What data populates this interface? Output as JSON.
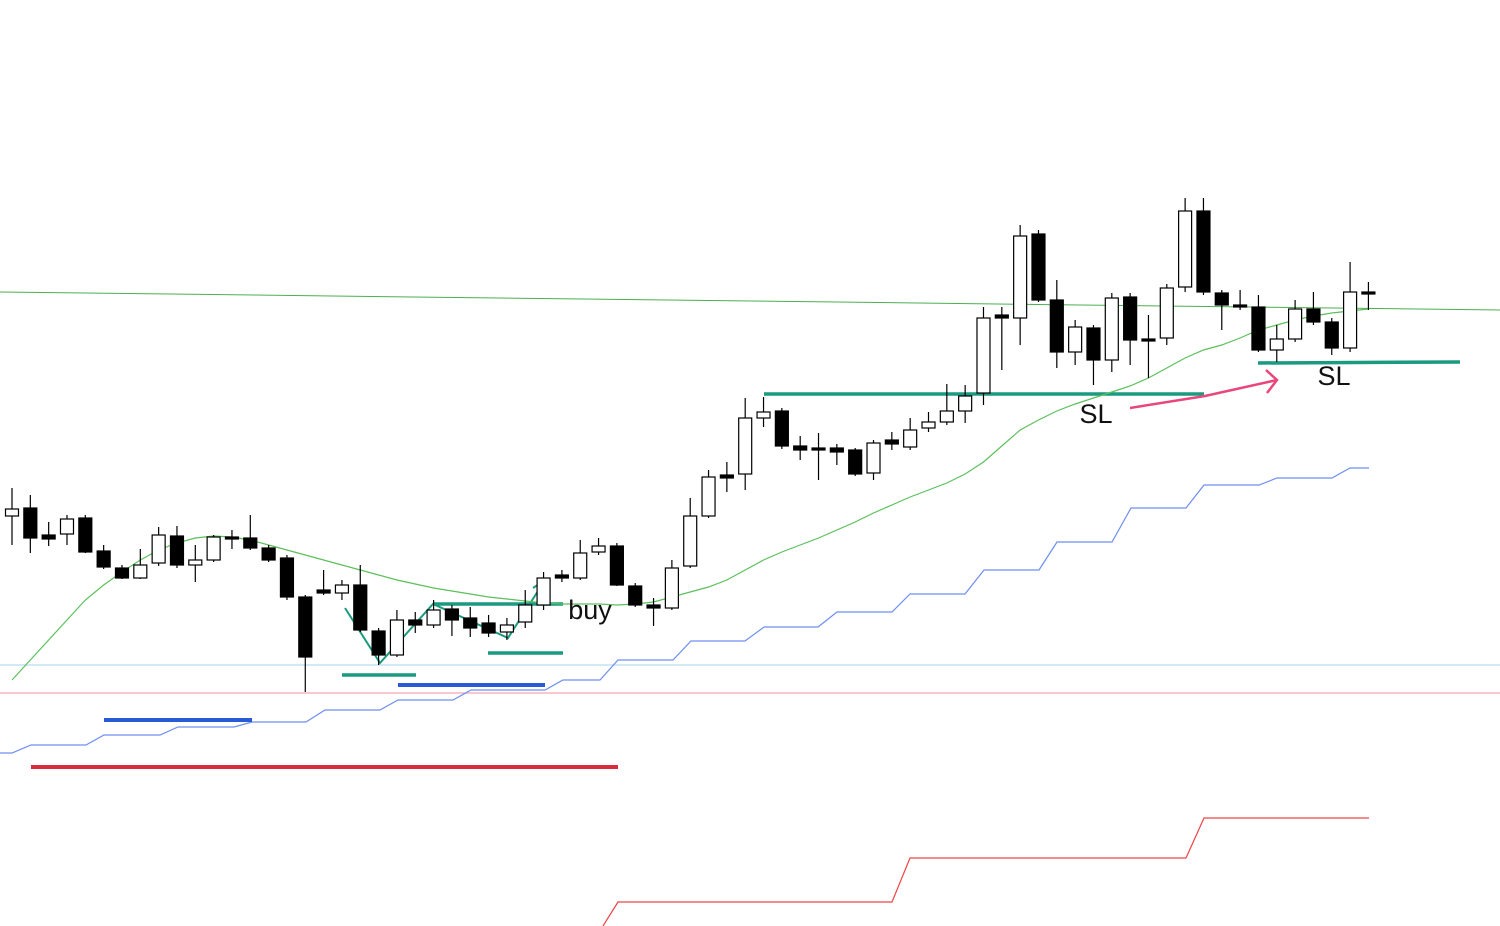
{
  "chart_data": {
    "type": "candlestick",
    "ylim": [
      0,
      926
    ],
    "up_color": "#ffffff",
    "down_color": "#000000",
    "edge_color": "#000000",
    "open": [
      410,
      418,
      391,
      392,
      408,
      375,
      358,
      348,
      363,
      390,
      361,
      366,
      389,
      388,
      378,
      368,
      329,
      336,
      333,
      341,
      295,
      271,
      306,
      301,
      317,
      308,
      303,
      294,
      304,
      321,
      351,
      348,
      374,
      380,
      340,
      321,
      318,
      360,
      410,
      451,
      452,
      508,
      515,
      480,
      478,
      478,
      476,
      453,
      486,
      479,
      498,
      504,
      515,
      533,
      611,
      608,
      692,
      626,
      574,
      598,
      566,
      629,
      587,
      588,
      639,
      715,
      633,
      621,
      619,
      576,
      587,
      617,
      604,
      578,
      634
    ],
    "high": [
      438,
      431,
      404,
      411,
      411,
      381,
      361,
      377,
      399,
      400,
      381,
      391,
      396,
      411,
      381,
      371,
      331,
      356,
      346,
      361,
      298,
      316,
      314,
      326,
      321,
      319,
      311,
      308,
      336,
      354,
      356,
      386,
      388,
      383,
      343,
      328,
      366,
      428,
      456,
      464,
      528,
      529,
      518,
      490,
      493,
      482,
      478,
      486,
      494,
      508,
      514,
      542,
      541,
      619,
      619,
      701,
      696,
      646,
      606,
      601,
      633,
      633,
      611,
      642,
      728,
      728,
      636,
      636,
      631,
      601,
      626,
      634,
      608,
      664,
      644
    ],
    "low": [
      381,
      373,
      380,
      381,
      373,
      357,
      347,
      347,
      360,
      358,
      344,
      364,
      377,
      376,
      364,
      326,
      234,
      331,
      326,
      294,
      261,
      269,
      293,
      298,
      290,
      289,
      289,
      286,
      298,
      316,
      344,
      346,
      371,
      340,
      319,
      300,
      316,
      358,
      408,
      434,
      436,
      499,
      477,
      466,
      446,
      461,
      450,
      446,
      476,
      476,
      494,
      501,
      503,
      521,
      556,
      581,
      624,
      558,
      561,
      541,
      554,
      561,
      548,
      581,
      634,
      631,
      596,
      616,
      574,
      564,
      584,
      601,
      571,
      574,
      616
    ],
    "close": [
      417,
      388,
      387,
      407,
      374,
      359,
      348,
      361,
      391,
      361,
      366,
      389,
      387,
      378,
      366,
      329,
      269,
      333,
      341,
      296,
      271,
      306,
      301,
      316,
      306,
      298,
      293,
      301,
      321,
      348,
      348,
      373,
      380,
      341,
      321,
      318,
      358,
      410,
      449,
      448,
      508,
      514,
      480,
      476,
      476,
      474,
      452,
      483,
      482,
      496,
      504,
      515,
      530,
      608,
      608,
      690,
      626,
      574,
      599,
      566,
      628,
      586,
      585,
      638,
      715,
      634,
      621,
      619,
      576,
      587,
      617,
      604,
      578,
      634,
      632
    ],
    "ma": {
      "color": "#5cbf5c",
      "values": [
        246,
        266,
        286,
        306,
        326,
        341,
        354,
        366,
        376,
        383,
        388,
        390,
        389,
        386,
        381,
        376,
        371,
        366,
        361,
        356,
        351,
        346,
        342,
        338,
        335,
        332,
        329,
        327,
        325,
        323,
        322,
        322,
        322,
        321,
        322,
        324,
        329,
        334,
        339,
        346,
        356,
        366,
        374,
        381,
        388,
        396,
        404,
        413,
        421,
        429,
        436,
        443,
        452,
        464,
        480,
        496,
        506,
        515,
        522,
        528,
        534,
        540,
        548,
        558,
        568,
        576,
        581,
        588,
        596,
        601,
        606,
        610,
        613,
        615,
        617
      ]
    },
    "annotations": [
      "buy",
      "SL",
      "SL"
    ]
  }
}
